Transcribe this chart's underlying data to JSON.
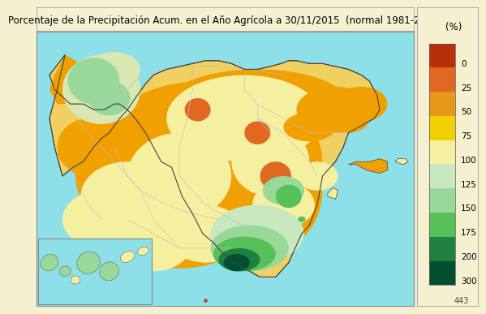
{
  "title": "Porcentaje de la Precipitación Acum. en el Año Agrícola a 30/11/2015  (normal 1981-2010)",
  "title_fontsize": 8.5,
  "background_outer": "#f5f0d0",
  "background_map": "#8ee0e8",
  "map_border_color": "#888888",
  "legend_label": "(%)",
  "legend_values": [
    0,
    25,
    50,
    75,
    100,
    125,
    150,
    175,
    200,
    300
  ],
  "legend_colors": [
    "#b83008",
    "#e06820",
    "#e89818",
    "#f0d000",
    "#f5f0a0",
    "#c8e8c0",
    "#98d898",
    "#58c058",
    "#208040",
    "#005030"
  ],
  "footer_text": "443",
  "footer_fontsize": 7
}
